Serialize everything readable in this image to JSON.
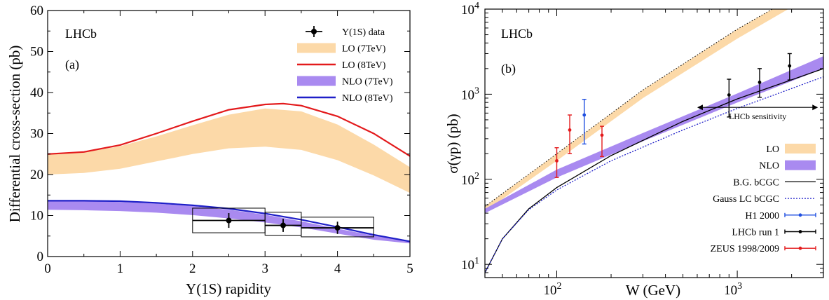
{
  "chart_data": [
    {
      "type": "line",
      "panel_label": "(a)",
      "experiment": "LHCb",
      "xlabel": "Υ(1S) rapidity",
      "ylabel": "Differential cross-section (pb)",
      "xlim": [
        0,
        5
      ],
      "ylim": [
        0,
        60
      ],
      "xticks": [
        "0",
        "1",
        "2",
        "3",
        "4",
        "5"
      ],
      "yticks": [
        "0",
        "10",
        "20",
        "30",
        "40",
        "50",
        "60"
      ],
      "legend_position": "top-right",
      "bands": [
        {
          "name": "LO (7TeV)",
          "color": "#fcd9a8",
          "x": [
            0,
            0.5,
            1,
            1.5,
            2,
            2.5,
            3,
            3.5,
            4,
            4.5,
            5
          ],
          "lower": [
            20,
            20.4,
            21.4,
            23.2,
            25,
            26.4,
            26.8,
            26,
            23.5,
            19.8,
            15.5
          ],
          "upper": [
            25,
            25.4,
            26.9,
            29.3,
            32,
            34.6,
            36.1,
            35.4,
            32.2,
            27.3,
            21.8
          ]
        },
        {
          "name": "NLO (7TeV)",
          "color": "#a98af0",
          "x": [
            0,
            0.5,
            1,
            1.5,
            2,
            2.5,
            3,
            3.5,
            4,
            4.5,
            5
          ],
          "lower": [
            11.4,
            11.3,
            11.1,
            10.7,
            10.1,
            9.3,
            8.3,
            7.1,
            5.6,
            4.1,
            3.2
          ],
          "upper": [
            13.5,
            13.5,
            13.3,
            12.9,
            12.3,
            11.4,
            10.2,
            8.6,
            6.8,
            5.1,
            3.6
          ]
        }
      ],
      "series": [
        {
          "name": "LO (8TeV)",
          "color": "#e31a1c",
          "x": [
            0,
            0.5,
            1,
            1.5,
            2,
            2.5,
            3,
            3.25,
            3.5,
            4,
            4.5,
            5
          ],
          "y": [
            25,
            25.5,
            27.2,
            30,
            33,
            35.8,
            37.1,
            37.3,
            36.8,
            34.2,
            30,
            24.5
          ]
        },
        {
          "name": "NLO (8TeV)",
          "color": "#1f1fc8",
          "x": [
            0,
            0.5,
            1,
            1.5,
            2,
            2.5,
            3,
            3.5,
            4,
            4.5,
            5
          ],
          "y": [
            13.6,
            13.6,
            13.5,
            13.1,
            12.5,
            11.7,
            10.5,
            9,
            7.2,
            5.3,
            3.7
          ]
        }
      ],
      "data": {
        "name": "Υ(1S) data",
        "points": [
          {
            "x": 2.5,
            "y": 8.8,
            "err": 1.8,
            "xlo": 2,
            "xhi": 3,
            "boxlo": 5.8,
            "boxhi": 11.8
          },
          {
            "x": 3.25,
            "y": 7.6,
            "err": 1.6,
            "xlo": 3,
            "xhi": 3.5,
            "boxlo": 5.2,
            "boxhi": 10.8
          },
          {
            "x": 4,
            "y": 7,
            "err": 1.5,
            "xlo": 3.5,
            "xhi": 4.5,
            "boxlo": 4.8,
            "boxhi": 9.6
          }
        ]
      }
    },
    {
      "type": "line",
      "panel_label": "(b)",
      "experiment": "LHCb",
      "xlabel": "W (GeV)",
      "ylabel": "σ(γp) (pb)",
      "xscale": "log",
      "yscale": "log",
      "xlim": [
        40,
        3000
      ],
      "ylim": [
        7,
        10000
      ],
      "xticks": [
        {
          "v": 100,
          "label": "10",
          "exp": "2"
        },
        {
          "v": 1000,
          "label": "10",
          "exp": "3"
        }
      ],
      "yticks": [
        {
          "v": 10,
          "label": "10",
          "exp": "1"
        },
        {
          "v": 100,
          "label": "10",
          "exp": "2"
        },
        {
          "v": 1000,
          "label": "10",
          "exp": "3"
        },
        {
          "v": 10000,
          "label": "10",
          "exp": "4"
        }
      ],
      "legend_position": "bottom-right",
      "annotation": {
        "text": "LHCb sensitivity",
        "x_from": 600,
        "x_to": 2800,
        "y": 700
      },
      "bands": [
        {
          "name": "LO",
          "color": "#fcd9a8",
          "x": [
            40,
            100,
            300,
            1000,
            2300
          ],
          "lower": [
            42,
            165,
            900,
            4500,
            12500
          ],
          "upper": [
            48,
            200,
            1120,
            5800,
            16000
          ]
        },
        {
          "name": "NLO",
          "color": "#a98af0",
          "x": [
            40,
            100,
            300,
            1000,
            3000
          ],
          "lower": [
            40,
            105,
            280,
            800,
            2000
          ],
          "upper": [
            45,
            130,
            350,
            1020,
            2800
          ]
        }
      ],
      "series": [
        {
          "name": "B.G. bCGC",
          "color": "#000000",
          "dash": "",
          "x": [
            40,
            50,
            70,
            100,
            200,
            500,
            1000,
            3000
          ],
          "y": [
            8,
            20,
            45,
            80,
            190,
            480,
            880,
            2000
          ]
        },
        {
          "name": "Gauss LC bCGC",
          "color": "#1f1fc8",
          "dash": "2,2",
          "x": [
            40,
            50,
            70,
            100,
            200,
            500,
            1000,
            3000
          ],
          "y": [
            8,
            20,
            44,
            75,
            165,
            380,
            680,
            1600
          ]
        }
      ],
      "datasets": [
        {
          "name": "H1 2000",
          "color": "#1f4fe0",
          "points": [
            {
              "x": 142,
              "y": 570,
              "lo": 260,
              "hi": 870
            }
          ]
        },
        {
          "name": "LHCb run 1",
          "color": "#000000",
          "points": [
            {
              "x": 900,
              "y": 980,
              "lo": 540,
              "hi": 1500
            },
            {
              "x": 1330,
              "y": 1380,
              "lo": 920,
              "hi": 2000
            },
            {
              "x": 1950,
              "y": 2150,
              "lo": 1470,
              "hi": 3000
            }
          ]
        },
        {
          "name": "ZEUS 1998/2009",
          "color": "#e31a1c",
          "points": [
            {
              "x": 100,
              "y": 165,
              "lo": 105,
              "hi": 235
            },
            {
              "x": 118,
              "y": 380,
              "lo": 200,
              "hi": 570
            },
            {
              "x": 178,
              "y": 330,
              "lo": 185,
              "hi": 420
            }
          ]
        }
      ]
    }
  ]
}
